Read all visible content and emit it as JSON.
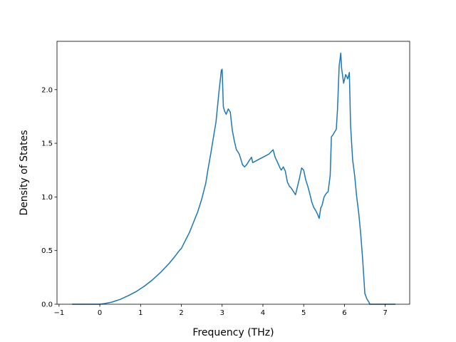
{
  "chart_data": {
    "type": "line",
    "title": "",
    "xlabel": "Frequency (THz)",
    "ylabel": "Density of States",
    "xlim": [
      -1.05,
      7.6
    ],
    "ylim": [
      0.0,
      2.45
    ],
    "xticks": [
      -1,
      0,
      1,
      2,
      3,
      4,
      5,
      6,
      7
    ],
    "yticks": [
      0.0,
      0.5,
      1.0,
      1.5,
      2.0
    ],
    "xtick_labels": [
      "−1",
      "0",
      "1",
      "2",
      "3",
      "4",
      "5",
      "6",
      "7"
    ],
    "ytick_labels": [
      "0.0",
      "0.5",
      "1.0",
      "1.5",
      "2.0"
    ],
    "grid": false,
    "legend": "none",
    "line_color": "#1f77b4",
    "series": [
      {
        "x": [
          -0.68,
          0.0,
          0.1,
          0.3,
          0.5,
          0.7,
          0.9,
          1.1,
          1.3,
          1.5,
          1.7,
          1.85,
          1.95,
          2.0,
          2.2,
          2.4,
          2.5,
          2.6,
          2.65,
          2.72,
          2.78,
          2.85,
          2.92,
          2.98,
          3.0,
          3.03,
          3.06,
          3.1,
          3.15,
          3.2,
          3.25,
          3.3,
          3.35,
          3.42,
          3.5,
          3.55,
          3.6,
          3.65,
          3.72,
          3.75,
          3.8,
          3.85,
          3.9,
          3.95,
          4.0,
          4.05,
          4.1,
          4.15,
          4.2,
          4.25,
          4.3,
          4.35,
          4.42,
          4.45,
          4.5,
          4.55,
          4.6,
          4.65,
          4.7,
          4.75,
          4.8,
          4.85,
          4.9,
          4.95,
          5.0,
          5.05,
          5.1,
          5.15,
          5.2,
          5.25,
          5.3,
          5.35,
          5.38,
          5.42,
          5.45,
          5.5,
          5.55,
          5.6,
          5.65,
          5.68,
          5.72,
          5.75,
          5.8,
          5.83,
          5.87,
          5.91,
          5.93,
          5.98,
          6.03,
          6.08,
          6.12,
          6.15,
          6.2,
          6.25,
          6.3,
          6.35,
          6.4,
          6.45,
          6.5,
          6.55,
          6.6,
          6.62,
          6.7,
          7.0,
          7.25
        ],
        "y": [
          0.0,
          0.0,
          0.005,
          0.02,
          0.045,
          0.08,
          0.12,
          0.17,
          0.23,
          0.3,
          0.38,
          0.45,
          0.5,
          0.52,
          0.67,
          0.86,
          0.98,
          1.13,
          1.25,
          1.4,
          1.54,
          1.7,
          1.97,
          2.18,
          2.19,
          1.84,
          1.8,
          1.77,
          1.82,
          1.79,
          1.62,
          1.52,
          1.44,
          1.4,
          1.3,
          1.28,
          1.3,
          1.33,
          1.37,
          1.32,
          1.33,
          1.34,
          1.35,
          1.36,
          1.37,
          1.38,
          1.39,
          1.4,
          1.42,
          1.44,
          1.37,
          1.33,
          1.27,
          1.25,
          1.28,
          1.24,
          1.14,
          1.1,
          1.08,
          1.05,
          1.02,
          1.1,
          1.18,
          1.27,
          1.25,
          1.16,
          1.1,
          1.03,
          0.95,
          0.9,
          0.87,
          0.83,
          0.8,
          0.9,
          0.92,
          1.0,
          1.03,
          1.05,
          1.2,
          1.56,
          1.58,
          1.6,
          1.63,
          1.82,
          2.22,
          2.34,
          2.2,
          2.06,
          2.14,
          2.1,
          2.16,
          1.67,
          1.35,
          1.2,
          1.0,
          0.85,
          0.65,
          0.4,
          0.1,
          0.05,
          0.02,
          0.0,
          0.0,
          0.0,
          0.0
        ]
      }
    ]
  }
}
